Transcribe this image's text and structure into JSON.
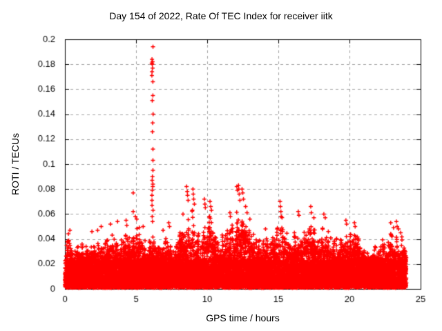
{
  "chart_data": {
    "type": "scatter",
    "title": "Day 154 of 2022, Rate Of TEC Index for receiver iitk",
    "xlabel": "GPS time / hours",
    "ylabel": "ROTI / TECUs",
    "xlim": [
      0,
      25
    ],
    "ylim": [
      0,
      0.2
    ],
    "xticks": [
      0,
      5,
      10,
      15,
      20,
      25
    ],
    "xtick_labels": [
      "0",
      "5",
      "10",
      "15",
      "20",
      "25"
    ],
    "yticks": [
      0,
      0.02,
      0.04,
      0.06,
      0.08,
      0.1,
      0.12,
      0.14,
      0.16,
      0.18,
      0.2
    ],
    "ytick_labels": [
      "0",
      "0.02",
      "0.04",
      "0.06",
      "0.08",
      "0.1",
      "0.12",
      "0.14",
      "0.16",
      "0.18",
      "0.2"
    ],
    "grid": true,
    "grid_style": "dashed",
    "legend": "none",
    "marker": "plus",
    "marker_size_px": 7,
    "marker_color": "#ff0000",
    "grid_color": "#a0a0a0",
    "axis_color": "#000000",
    "background_color": "#ffffff",
    "series_name": "ROTI",
    "data_x_range": [
      0,
      24.05
    ],
    "envelope_step_hours": 0.25,
    "envelope_max": [
      0.042,
      0.047,
      0.043,
      0.038,
      0.037,
      0.041,
      0.043,
      0.037,
      0.044,
      0.047,
      0.044,
      0.039,
      0.043,
      0.05,
      0.044,
      0.039,
      0.043,
      0.052,
      0.047,
      0.043,
      0.055,
      0.049,
      0.047,
      0.041,
      0.045,
      0.05,
      0.041,
      0.038,
      0.043,
      0.051,
      0.041,
      0.039,
      0.046,
      0.056,
      0.064,
      0.058,
      0.066,
      0.056,
      0.05,
      0.062,
      0.058,
      0.063,
      0.049,
      0.045,
      0.044,
      0.047,
      0.052,
      0.056,
      0.066,
      0.074,
      0.068,
      0.061,
      0.053,
      0.048,
      0.046,
      0.043,
      0.042,
      0.045,
      0.047,
      0.049,
      0.052,
      0.062,
      0.05,
      0.046,
      0.048,
      0.056,
      0.047,
      0.049,
      0.052,
      0.058,
      0.05,
      0.048,
      0.052,
      0.056,
      0.048,
      0.045,
      0.043,
      0.041,
      0.046,
      0.052,
      0.047,
      0.052,
      0.045,
      0.041,
      0.038,
      0.036,
      0.035,
      0.035,
      0.037,
      0.039,
      0.043,
      0.046,
      0.047,
      0.05,
      0.044,
      0.042,
      0.044
    ],
    "dense_band_max": 0.026,
    "baseline_min": 0.001,
    "spike": {
      "x": 6.15,
      "x_jitter": 0.05,
      "values": [
        0.194,
        0.184,
        0.182,
        0.181,
        0.18,
        0.177,
        0.174,
        0.171,
        0.166,
        0.155,
        0.151,
        0.14,
        0.133,
        0.126,
        0.112,
        0.103,
        0.095,
        0.09,
        0.087,
        0.084,
        0.082,
        0.079,
        0.075,
        0.071,
        0.067,
        0.063,
        0.058,
        0.054
      ]
    },
    "outliers": [
      [
        0.35,
        0.047
      ],
      [
        1.9,
        0.046
      ],
      [
        2.3,
        0.047
      ],
      [
        2.55,
        0.05
      ],
      [
        3.2,
        0.052
      ],
      [
        3.7,
        0.054
      ],
      [
        4.3,
        0.055
      ],
      [
        4.35,
        0.051
      ],
      [
        4.8,
        0.077
      ],
      [
        4.8,
        0.062
      ],
      [
        4.95,
        0.058
      ],
      [
        5.05,
        0.056
      ],
      [
        5.5,
        0.05
      ],
      [
        6.9,
        0.047
      ],
      [
        7.3,
        0.053
      ],
      [
        7.35,
        0.05
      ],
      [
        8.3,
        0.06
      ],
      [
        8.55,
        0.082
      ],
      [
        8.6,
        0.078
      ],
      [
        8.62,
        0.075
      ],
      [
        8.66,
        0.071
      ],
      [
        9.0,
        0.08
      ],
      [
        9.02,
        0.076
      ],
      [
        9.05,
        0.072
      ],
      [
        9.1,
        0.068
      ],
      [
        9.8,
        0.072
      ],
      [
        9.84,
        0.068
      ],
      [
        9.87,
        0.065
      ],
      [
        10.2,
        0.07
      ],
      [
        10.25,
        0.066
      ],
      [
        10.3,
        0.063
      ],
      [
        11.6,
        0.061
      ],
      [
        11.63,
        0.058
      ],
      [
        12.08,
        0.082
      ],
      [
        12.12,
        0.079
      ],
      [
        12.2,
        0.083
      ],
      [
        12.22,
        0.08
      ],
      [
        12.25,
        0.076
      ],
      [
        12.3,
        0.071
      ],
      [
        12.45,
        0.08
      ],
      [
        12.5,
        0.077
      ],
      [
        12.55,
        0.072
      ],
      [
        12.7,
        0.066
      ],
      [
        12.8,
        0.061
      ],
      [
        13.0,
        0.056
      ],
      [
        14.1,
        0.048
      ],
      [
        15.12,
        0.07
      ],
      [
        15.15,
        0.066
      ],
      [
        15.18,
        0.062
      ],
      [
        15.2,
        0.058
      ],
      [
        16.4,
        0.062
      ],
      [
        16.45,
        0.059
      ],
      [
        17.28,
        0.066
      ],
      [
        17.32,
        0.061
      ],
      [
        17.5,
        0.057
      ],
      [
        18.2,
        0.06
      ],
      [
        18.3,
        0.057
      ],
      [
        19.75,
        0.055
      ],
      [
        19.8,
        0.052
      ],
      [
        20.35,
        0.053
      ],
      [
        20.4,
        0.05
      ],
      [
        22.9,
        0.053
      ],
      [
        23.1,
        0.049
      ],
      [
        23.3,
        0.054
      ],
      [
        23.35,
        0.05
      ],
      [
        23.45,
        0.048
      ],
      [
        23.6,
        0.045
      ]
    ],
    "points_per_bin": 150,
    "seed": 42
  }
}
